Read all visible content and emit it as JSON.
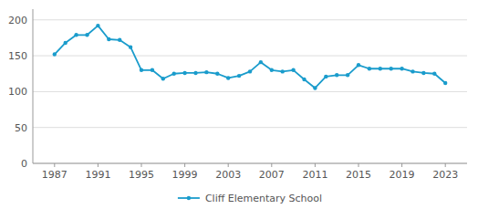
{
  "chart_data": {
    "type": "line",
    "x": [
      1987,
      1988,
      1989,
      1990,
      1991,
      1992,
      1993,
      1994,
      1995,
      1996,
      1997,
      1998,
      1999,
      2000,
      2001,
      2002,
      2003,
      2004,
      2005,
      2006,
      2007,
      2008,
      2009,
      2010,
      2011,
      2012,
      2013,
      2014,
      2015,
      2016,
      2017,
      2018,
      2019,
      2020,
      2021,
      2022,
      2023
    ],
    "series": [
      {
        "name": "Cliff Elementary School",
        "color": "#1a9ccc",
        "marker": "circle",
        "values": [
          152,
          168,
          179,
          179,
          192,
          173,
          172,
          162,
          130,
          130,
          118,
          125,
          126,
          126,
          127,
          125,
          119,
          122,
          128,
          141,
          130,
          128,
          130,
          117,
          105,
          121,
          123,
          123,
          137,
          132,
          132,
          132,
          132,
          128,
          126,
          125,
          112
        ]
      }
    ],
    "xlim": [
      1985,
      2025
    ],
    "xticks": [
      1987,
      1991,
      1995,
      1999,
      2003,
      2007,
      2011,
      2015,
      2019,
      2023
    ],
    "ylim": [
      0,
      215
    ],
    "yticks": [
      0,
      50,
      100,
      150,
      200
    ],
    "grid": true,
    "legend": "bottom"
  }
}
